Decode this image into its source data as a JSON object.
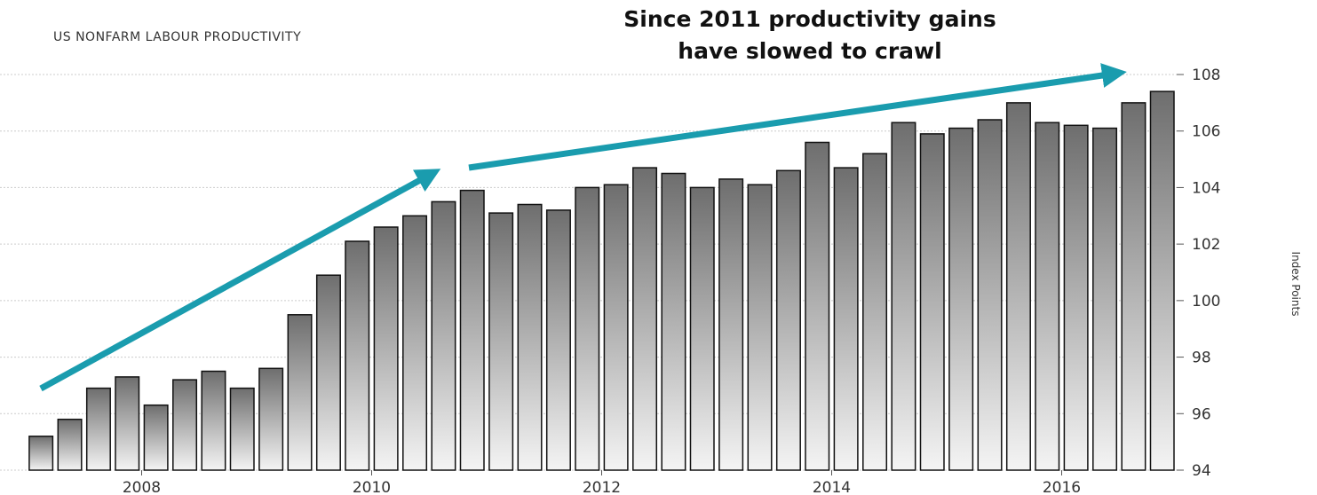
{
  "chart_data": {
    "type": "bar",
    "title": "US NONFARM LABOUR PRODUCTIVITY",
    "annotation": [
      "Since 2011 productivity gains",
      "have slowed to crawl"
    ],
    "ylabel": "Index Points",
    "xlabel": "",
    "ylim": [
      94,
      108
    ],
    "yticks": [
      94,
      96,
      98,
      100,
      102,
      104,
      106,
      108
    ],
    "xticks": [
      "2008",
      "2010",
      "2012",
      "2014",
      "2016"
    ],
    "grid": true,
    "values": [
      95.2,
      95.8,
      96.9,
      97.3,
      96.3,
      97.2,
      97.5,
      96.9,
      97.6,
      99.5,
      100.9,
      102.1,
      102.6,
      103.0,
      103.5,
      103.9,
      103.1,
      103.4,
      103.2,
      104.0,
      104.1,
      104.7,
      104.5,
      104.0,
      104.3,
      104.1,
      104.6,
      105.6,
      104.7,
      105.2,
      106.3,
      105.9,
      106.1,
      106.4,
      107.0,
      106.3,
      106.2,
      106.1,
      107.0,
      107.4
    ],
    "colors": {
      "bar_top": "#6e6e6e",
      "bar_bottom": "#f4f4f4",
      "bar_stroke": "#111111",
      "arrow": "#1a9cae",
      "grid": "#cccccc"
    }
  }
}
